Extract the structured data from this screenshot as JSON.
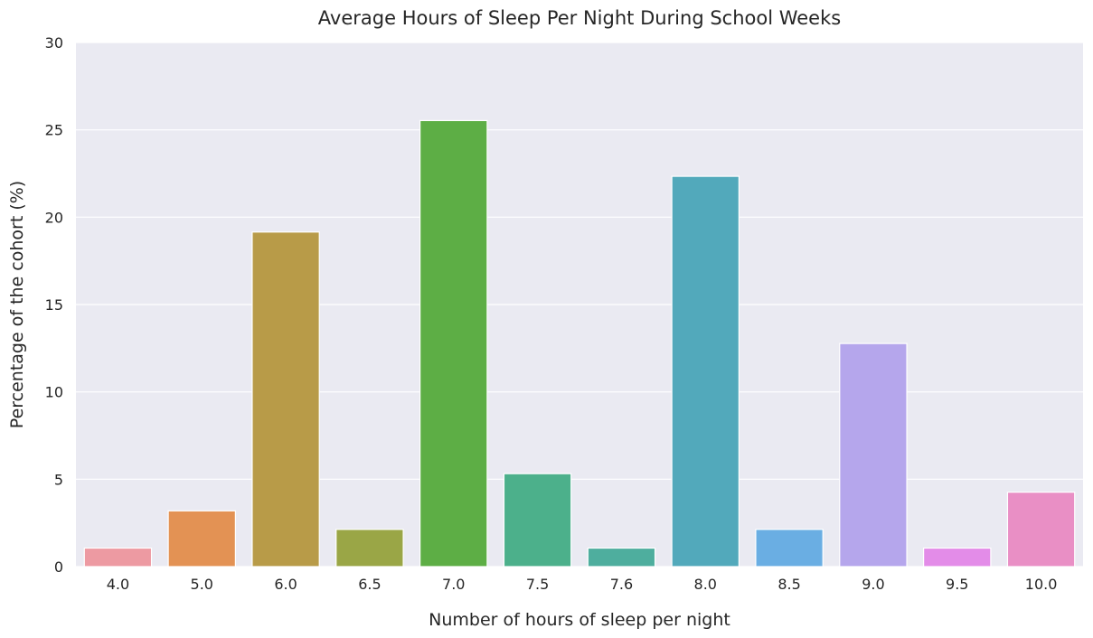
{
  "chart_data": {
    "type": "bar",
    "title": "Average Hours of Sleep Per Night During School Weeks",
    "xlabel": "Number of hours of sleep per night",
    "ylabel": "Percentage of the cohort (%)",
    "categories": [
      "4.0",
      "5.0",
      "6.0",
      "6.5",
      "7.0",
      "7.5",
      "7.6",
      "8.0",
      "8.5",
      "9.0",
      "9.5",
      "10.0"
    ],
    "values": [
      1.06,
      3.19,
      19.15,
      2.13,
      25.53,
      5.32,
      1.06,
      22.34,
      2.13,
      12.77,
      1.06,
      4.26
    ],
    "colors": [
      "#ed9aa2",
      "#e39254",
      "#b89b48",
      "#9aa646",
      "#5dae45",
      "#4cb08b",
      "#4eae9e",
      "#52a9bb",
      "#6aaee3",
      "#b5a6ec",
      "#e38ce8",
      "#e98fc5"
    ],
    "ylim": [
      0,
      30
    ],
    "yticks": [
      0,
      5,
      10,
      15,
      20,
      25,
      30
    ],
    "grid": true,
    "background": "#eaeaf2",
    "legend": "none"
  }
}
